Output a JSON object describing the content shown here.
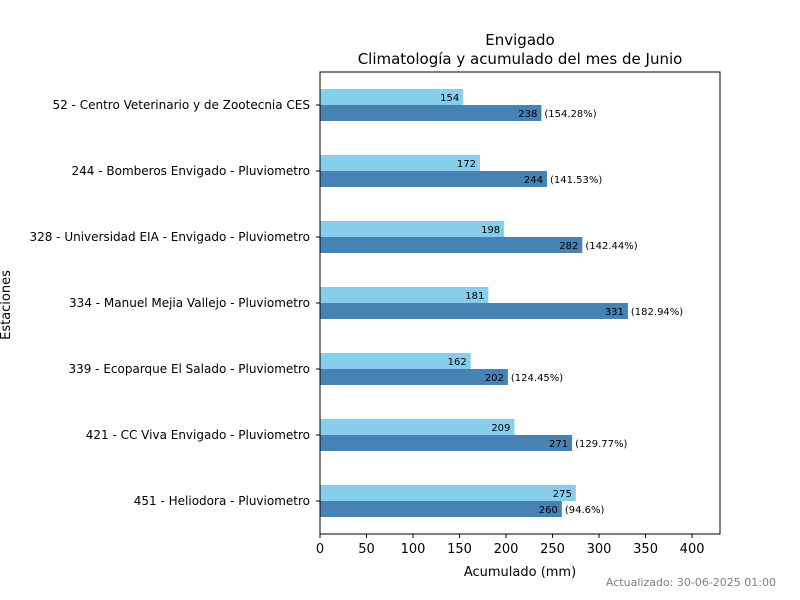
{
  "chart_data": {
    "type": "bar",
    "orientation": "horizontal",
    "title": "Envigado",
    "subtitle": "Climatología y acumulado del mes de Junio",
    "xlabel": "Acumulado (mm)",
    "ylabel": "Estaciones",
    "xlim": [
      0,
      430
    ],
    "xticks": [
      0,
      50,
      100,
      150,
      200,
      250,
      300,
      350,
      400
    ],
    "grid": false,
    "categories": [
      "52 - Centro Veterinario y de Zootecnia CES",
      "244 - Bomberos Envigado - Pluviometro",
      "328 - Universidad EIA - Envigado - Pluviometro",
      "334 - Manuel Mejia Vallejo - Pluviometro",
      "339 - Ecoparque El Salado - Pluviometro",
      "421 - CC Viva Envigado - Pluviometro",
      "451 - Heliodora - Pluviometro"
    ],
    "series": [
      {
        "values": [
          154,
          172,
          198,
          181,
          162,
          209,
          275
        ],
        "color": "#87ceeb",
        "labels": [
          "154",
          "172",
          "198",
          "181",
          "162",
          "209",
          "275"
        ]
      },
      {
        "values": [
          238,
          244,
          282,
          331,
          202,
          271,
          260
        ],
        "color": "#4682b4",
        "labels": [
          "238",
          "244",
          "282",
          "331",
          "202",
          "271",
          "260"
        ],
        "annotations": [
          "(154.28%)",
          "(141.53%)",
          "(142.44%)",
          "(182.94%)",
          "(124.45%)",
          "(129.77%)",
          "(94.6%)"
        ]
      }
    ]
  },
  "footer": {
    "updated": "Actualizado: 30-06-2025 01:00"
  }
}
